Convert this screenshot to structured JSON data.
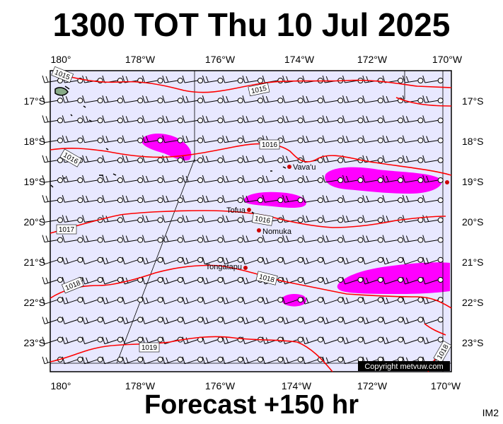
{
  "header": {
    "title": "1300 TOT Thu 10 Jul 2025"
  },
  "footer": {
    "forecast": "Forecast +150 hr",
    "code": "IM2"
  },
  "copyright": "Copyright metvuw.com",
  "map": {
    "lon_labels": [
      "180°",
      "178°W",
      "176°W",
      "174°W",
      "172°W",
      "170°W"
    ],
    "lat_labels": [
      "17°S",
      "18°S",
      "19°S",
      "20°S",
      "21°S",
      "22°S",
      "23°S"
    ],
    "isobar_labels": [
      "1015",
      "1015",
      "1016",
      "1016",
      "1016",
      "1017",
      "1018",
      "1018",
      "1019",
      "1018"
    ],
    "places": [
      "Vava'u",
      "Tofua",
      "Nomuka",
      "Tongatapu"
    ],
    "colors": {
      "background": "#e8e8ff",
      "isobar": "#ff0000",
      "rain": "#ff00ff",
      "place": "#cc0000"
    }
  }
}
